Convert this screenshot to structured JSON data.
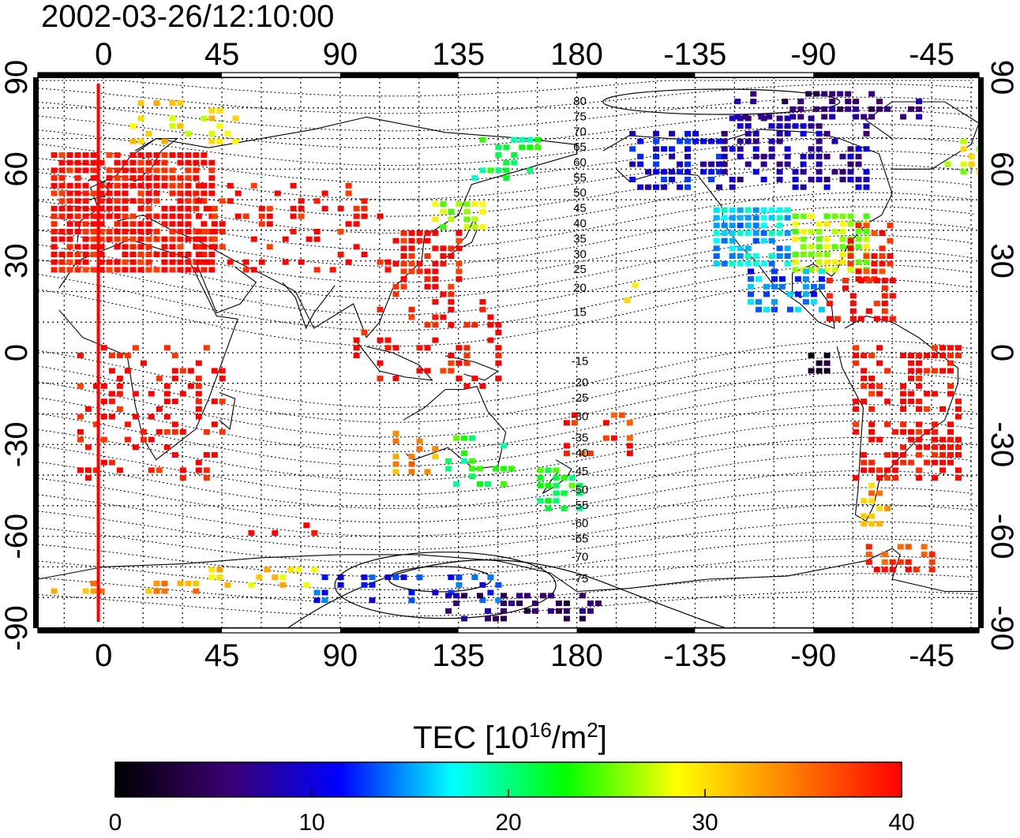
{
  "title": "2002-03-26/12:10:00",
  "map": {
    "x_ticks": [
      {
        "lon": 0,
        "label": "0"
      },
      {
        "lon": 45,
        "label": "45"
      },
      {
        "lon": 90,
        "label": "90"
      },
      {
        "lon": 135,
        "label": "135"
      },
      {
        "lon": 180,
        "label": "180"
      },
      {
        "lon": 225,
        "label": "-135"
      },
      {
        "lon": 270,
        "label": "-90"
      },
      {
        "lon": 315,
        "label": "-45"
      }
    ],
    "y_ticks": [
      {
        "lat": 90,
        "label": "90"
      },
      {
        "lat": 60,
        "label": "60"
      },
      {
        "lat": 30,
        "label": "30"
      },
      {
        "lat": 0,
        "label": "0"
      },
      {
        "lat": -30,
        "label": "-30"
      },
      {
        "lat": -60,
        "label": "-60"
      },
      {
        "lat": -90,
        "label": "-90"
      }
    ],
    "lon_range": [
      -25,
      333
    ],
    "lat_range": [
      -90,
      90
    ],
    "grid": true,
    "grid_step_lon": 15,
    "grid_step_lat": 10,
    "terminator_lon": -2,
    "terminator_color": "#ff0000",
    "contour_labels": [
      {
        "label": "80",
        "lon": 180,
        "lat": 81
      },
      {
        "label": "75",
        "lon": 180,
        "lat": 76
      },
      {
        "label": "70",
        "lon": 180,
        "lat": 71
      },
      {
        "label": "65",
        "lon": 180,
        "lat": 66
      },
      {
        "label": "60",
        "lon": 180,
        "lat": 61
      },
      {
        "label": "55",
        "lon": 180,
        "lat": 56
      },
      {
        "label": "50",
        "lon": 180,
        "lat": 51
      },
      {
        "label": "45",
        "lon": 180,
        "lat": 46
      },
      {
        "label": "40",
        "lon": 180,
        "lat": 41
      },
      {
        "label": "35",
        "lon": 180,
        "lat": 36
      },
      {
        "label": "30",
        "lon": 180,
        "lat": 31
      },
      {
        "label": "25",
        "lon": 180,
        "lat": 26
      },
      {
        "label": "20",
        "lon": 180,
        "lat": 20
      },
      {
        "label": "15",
        "lon": 180,
        "lat": 12
      },
      {
        "label": "-15",
        "lon": 180,
        "lat": -4
      },
      {
        "label": "-20",
        "lon": 180,
        "lat": -11
      },
      {
        "label": "-25",
        "lon": 180,
        "lat": -16
      },
      {
        "label": "-30",
        "lon": 180,
        "lat": -22
      },
      {
        "label": "-35",
        "lon": 180,
        "lat": -29
      },
      {
        "label": "-40",
        "lon": 180,
        "lat": -34
      },
      {
        "label": "-45",
        "lon": 180,
        "lat": -40
      },
      {
        "label": "-50",
        "lon": 180,
        "lat": -46
      },
      {
        "label": "-55",
        "lon": 180,
        "lat": -51
      },
      {
        "label": "-60",
        "lon": 180,
        "lat": -57
      },
      {
        "label": "-65",
        "lon": 180,
        "lat": -62
      },
      {
        "label": "-70",
        "lon": 180,
        "lat": -68
      },
      {
        "label": "-75",
        "lon": 180,
        "lat": -75
      }
    ]
  },
  "colorbar": {
    "title_prefix": "TEC  [10",
    "title_sup1": "16",
    "title_mid": "/m",
    "title_sup2": "2",
    "title_suffix": "]",
    "min": 0,
    "max": 40,
    "ticks": [
      "0",
      "10",
      "20",
      "30",
      "40"
    ],
    "colors": [
      "#000000",
      "#3a0070",
      "#0000ff",
      "#00ffff",
      "#00ff00",
      "#ffff00",
      "#ff8000",
      "#ff0000"
    ]
  },
  "tec_clusters": [
    {
      "name": "europe",
      "lon": [
        -20,
        42
      ],
      "lat": [
        28,
        68
      ],
      "value": 40,
      "density": 0.85
    },
    {
      "name": "russia-north",
      "lon": [
        10,
        50
      ],
      "lat": [
        70,
        84
      ],
      "value": 30,
      "density": 0.3
    },
    {
      "name": "central-asia",
      "lon": [
        35,
        110
      ],
      "lat": [
        28,
        56
      ],
      "value": 40,
      "density": 0.25
    },
    {
      "name": "east-asia",
      "lon": [
        110,
        135
      ],
      "lat": [
        20,
        42
      ],
      "value": 40,
      "density": 0.55
    },
    {
      "name": "japan-north",
      "lon": [
        125,
        145
      ],
      "lat": [
        42,
        52
      ],
      "value": 27,
      "density": 0.5
    },
    {
      "name": "siberia-east",
      "lon": [
        140,
        165
      ],
      "lat": [
        58,
        72
      ],
      "value": 21,
      "density": 0.35
    },
    {
      "name": "se-asia",
      "lon": [
        95,
        150
      ],
      "lat": [
        -10,
        20
      ],
      "value": 40,
      "density": 0.25
    },
    {
      "name": "africa",
      "lon": [
        -10,
        45
      ],
      "lat": [
        -40,
        5
      ],
      "value": 40,
      "density": 0.28
    },
    {
      "name": "australia-west",
      "lon": [
        110,
        128
      ],
      "lat": [
        -38,
        -25
      ],
      "value": 34,
      "density": 0.4
    },
    {
      "name": "australia-east",
      "lon": [
        130,
        155
      ],
      "lat": [
        -42,
        -25
      ],
      "value": 22,
      "density": 0.3
    },
    {
      "name": "new-zealand",
      "lon": [
        165,
        182
      ],
      "lat": [
        -50,
        -35
      ],
      "value": 22,
      "density": 0.55
    },
    {
      "name": "pacific-island",
      "lon": [
        175,
        200
      ],
      "lat": [
        -32,
        -18
      ],
      "value": 38,
      "density": 0.3
    },
    {
      "name": "alaska",
      "lon": [
        200,
        235
      ],
      "lat": [
        55,
        75
      ],
      "value": 10,
      "density": 0.55
    },
    {
      "name": "canada",
      "lon": [
        235,
        290
      ],
      "lat": [
        55,
        78
      ],
      "value": 8,
      "density": 0.55
    },
    {
      "name": "arctic-canada",
      "lon": [
        240,
        310
      ],
      "lat": [
        78,
        86
      ],
      "value": 6,
      "density": 0.45
    },
    {
      "name": "usa-west",
      "lon": [
        232,
        262
      ],
      "lat": [
        30,
        50
      ],
      "value": 16,
      "density": 0.8
    },
    {
      "name": "usa-east",
      "lon": [
        262,
        290
      ],
      "lat": [
        28,
        48
      ],
      "value": 27,
      "density": 0.8
    },
    {
      "name": "us-east-coast",
      "lon": [
        283,
        300
      ],
      "lat": [
        25,
        45
      ],
      "value": 39,
      "density": 0.6
    },
    {
      "name": "mexico",
      "lon": [
        245,
        275
      ],
      "lat": [
        15,
        30
      ],
      "value": 14,
      "density": 0.6
    },
    {
      "name": "caribbean",
      "lon": [
        275,
        300
      ],
      "lat": [
        12,
        25
      ],
      "value": 40,
      "density": 0.5
    },
    {
      "name": "hawaii",
      "lon": [
        198,
        205
      ],
      "lat": [
        18,
        25
      ],
      "value": 28,
      "density": 0.6
    },
    {
      "name": "galapagos",
      "lon": [
        268,
        275
      ],
      "lat": [
        -5,
        2
      ],
      "value": 2,
      "density": 0.6
    },
    {
      "name": "south-america",
      "lon": [
        285,
        325
      ],
      "lat": [
        -40,
        5
      ],
      "value": 40,
      "density": 0.45
    },
    {
      "name": "patagonia",
      "lon": [
        285,
        300
      ],
      "lat": [
        -55,
        -40
      ],
      "value": 33,
      "density": 0.4
    },
    {
      "name": "antarctic-peninsula",
      "lon": [
        290,
        320
      ],
      "lat": [
        -70,
        -60
      ],
      "value": 38,
      "density": 0.45
    },
    {
      "name": "south-ocean-row",
      "lon": [
        55,
        80
      ],
      "lat": [
        -58,
        -54
      ],
      "value": 40,
      "density": 0.3
    },
    {
      "name": "antarctica-atl",
      "lon": [
        -20,
        40
      ],
      "lat": [
        -77,
        -72
      ],
      "value": 34,
      "density": 0.35
    },
    {
      "name": "antarctica-ind",
      "lon": [
        40,
        80
      ],
      "lat": [
        -75,
        -69
      ],
      "value": 30,
      "density": 0.35
    },
    {
      "name": "antarctica-blue",
      "lon": [
        80,
        150
      ],
      "lat": [
        -80,
        -70
      ],
      "value": 12,
      "density": 0.25
    },
    {
      "name": "antarctica-deep",
      "lon": [
        130,
        190
      ],
      "lat": [
        -86,
        -78
      ],
      "value": 6,
      "density": 0.4
    },
    {
      "name": "greenland-east",
      "lon": [
        320,
        333
      ],
      "lat": [
        60,
        72
      ],
      "value": 28,
      "density": 0.35
    }
  ]
}
